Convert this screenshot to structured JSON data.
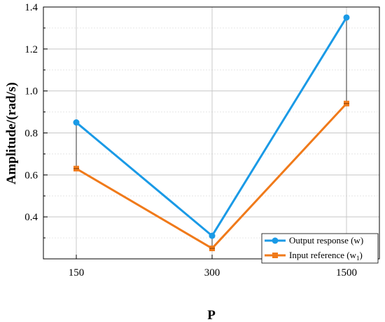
{
  "chart_data": {
    "type": "line",
    "categories": [
      "150",
      "300",
      "1500"
    ],
    "series": [
      {
        "name": "Output response (w)",
        "values": [
          0.85,
          0.31,
          1.35
        ],
        "color": "#1a9ae6",
        "marker": "circle"
      },
      {
        "name": "Input reference (w",
        "name_sub": "1",
        "name_suffix": ")",
        "values": [
          0.63,
          0.25,
          0.94
        ],
        "color": "#f07a1a",
        "marker": "square"
      }
    ],
    "xlabel": "P",
    "ylabel": "Amplitude/(rad/s)",
    "ylim": [
      0.2,
      1.4
    ],
    "yticks": [
      "0.4",
      "0.6",
      "0.8",
      "1.0",
      "1.2",
      "1.4"
    ],
    "grid": true,
    "legend_position": "bottom-right",
    "difference_lines": true
  }
}
